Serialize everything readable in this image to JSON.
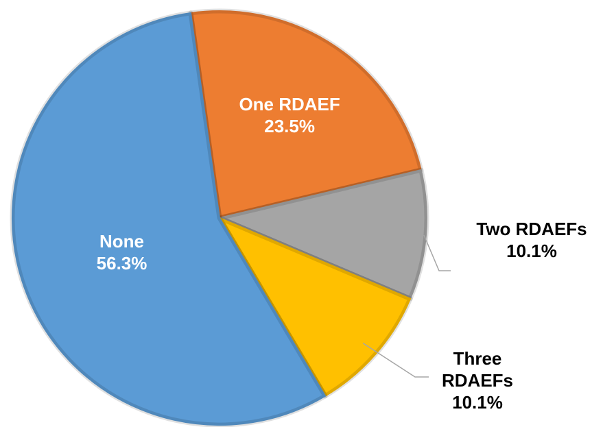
{
  "chart_data": {
    "type": "pie",
    "categories": [
      "One RDAEF",
      "Two RDAEFs",
      "Three RDAEFs",
      "None"
    ],
    "values": [
      23.5,
      10.1,
      10.1,
      56.3
    ],
    "value_labels": [
      "23.5%",
      "10.1%",
      "10.1%",
      "56.3%"
    ],
    "colors": [
      "#ED7D31",
      "#A5A5A5",
      "#FFC000",
      "#5B9BD5"
    ]
  }
}
